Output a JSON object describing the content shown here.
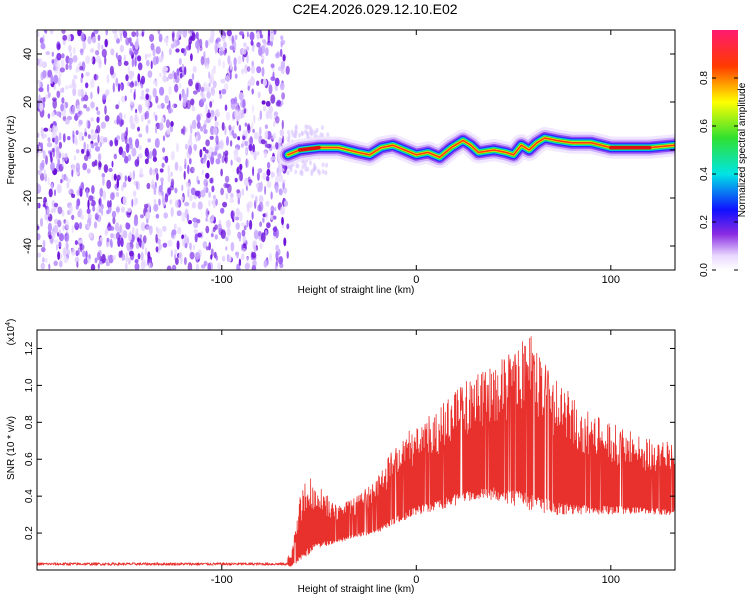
{
  "title": "C2E4.2026.029.12.10.E02",
  "chart_data": [
    {
      "type": "heatmap",
      "name": "spectrogram",
      "xlabel": "Height of straight line (km)",
      "ylabel": "Frequency (Hz)",
      "xlim": [
        -195,
        133
      ],
      "ylim": [
        -50,
        50
      ],
      "xticks": [
        -100,
        0,
        100
      ],
      "yticks": [
        -40,
        -20,
        0,
        20,
        40
      ],
      "noise_region_end_km": -66,
      "track_points": [
        [
          -66,
          -2
        ],
        [
          -60,
          0
        ],
        [
          -50,
          1
        ],
        [
          -40,
          1
        ],
        [
          -30,
          -1
        ],
        [
          -24,
          -2
        ],
        [
          -18,
          1
        ],
        [
          -12,
          2
        ],
        [
          -6,
          0
        ],
        [
          0,
          -2
        ],
        [
          6,
          -1
        ],
        [
          12,
          -3
        ],
        [
          18,
          1
        ],
        [
          24,
          4
        ],
        [
          28,
          2
        ],
        [
          32,
          -1
        ],
        [
          40,
          0
        ],
        [
          46,
          -1
        ],
        [
          50,
          -2
        ],
        [
          54,
          2
        ],
        [
          58,
          0
        ],
        [
          62,
          3
        ],
        [
          66,
          5
        ],
        [
          72,
          4
        ],
        [
          80,
          3
        ],
        [
          90,
          3
        ],
        [
          100,
          1
        ],
        [
          110,
          1
        ],
        [
          120,
          1
        ],
        [
          133,
          2
        ]
      ],
      "colorbar": {
        "label": "Normalized spectral amplitude",
        "ticks": [
          0.0,
          0.2,
          0.4,
          0.6,
          0.8
        ],
        "range": [
          0,
          1
        ],
        "tick_labels": [
          "0.0",
          "0.2",
          "0.4",
          "0.6",
          "0.8"
        ]
      }
    },
    {
      "type": "line",
      "name": "snr",
      "xlabel": "Height of straight line (km)",
      "ylabel": "SNR (10 * v/v)",
      "multiplier": "(x10",
      "multiplier_exp": "4",
      "multiplier_close": ")",
      "xlim": [
        -195,
        133
      ],
      "ylim": [
        0,
        1.3
      ],
      "xticks": [
        -100,
        0,
        100
      ],
      "yticks": [
        0.2,
        0.4,
        0.6,
        0.8,
        1.0,
        1.2
      ],
      "ytick_labels": [
        "0.2",
        "0.4",
        "0.6",
        "0.8",
        "1.0",
        "1.2"
      ],
      "color": "#e8302c",
      "envelope_km": [
        -195,
        -70,
        -64,
        -60,
        -56,
        -50,
        -40,
        -30,
        -20,
        -10,
        0,
        10,
        20,
        30,
        40,
        50,
        60,
        70,
        80,
        90,
        100,
        110,
        120,
        133
      ],
      "envelope_peak": [
        0.04,
        0.04,
        0.1,
        0.4,
        0.55,
        0.45,
        0.35,
        0.4,
        0.5,
        0.7,
        0.8,
        0.85,
        1.0,
        1.05,
        1.12,
        1.2,
        1.3,
        1.05,
        0.95,
        0.85,
        0.8,
        0.75,
        0.72,
        0.7
      ],
      "envelope_base": [
        0.02,
        0.02,
        0.02,
        0.05,
        0.08,
        0.12,
        0.15,
        0.18,
        0.2,
        0.25,
        0.3,
        0.32,
        0.35,
        0.38,
        0.38,
        0.35,
        0.32,
        0.3,
        0.3,
        0.3,
        0.3,
        0.3,
        0.3,
        0.3
      ]
    }
  ],
  "colors": {
    "axis": "#000000",
    "snr_line": "#e8302c"
  }
}
